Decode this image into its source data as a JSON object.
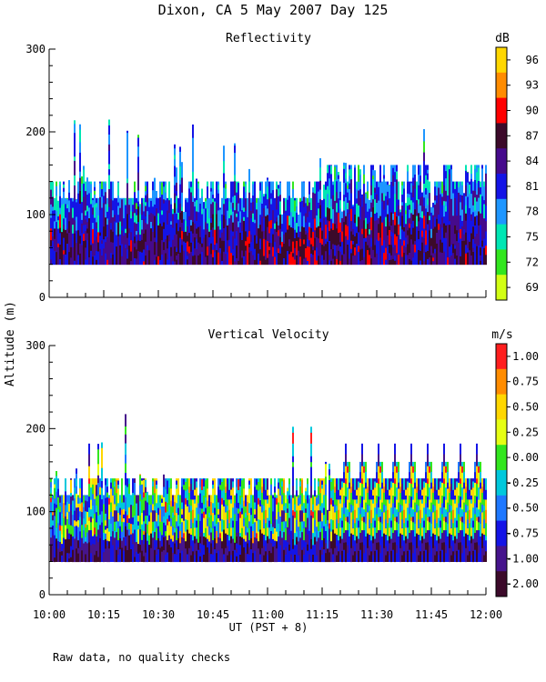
{
  "chart_data": {
    "type": "heatmap",
    "title": "Dixon, CA  5 May 2007  Day 125",
    "ylabel": "Altitude (m)",
    "xlabel": "UT  (PST + 8)",
    "x_ticks": [
      "10:00",
      "10:15",
      "10:30",
      "10:45",
      "11:00",
      "11:15",
      "11:30",
      "11:45",
      "12:00"
    ],
    "xlim_minutes": [
      600,
      720
    ],
    "ylim": [
      0,
      300
    ],
    "y_ticks": [
      0,
      100,
      200,
      300
    ],
    "panels": [
      {
        "id": "reflectivity",
        "title": "Reflectivity",
        "units": "dB",
        "colorbar_labels": [
          "96",
          "93",
          "90",
          "87",
          "84",
          "81",
          "78",
          "75",
          "72",
          "69"
        ],
        "colors_high_to_low": [
          "#ffd700",
          "#ff8c00",
          "#ff0000",
          "#3c0a2a",
          "#460a8c",
          "#1414e6",
          "#1e96ff",
          "#00e6b4",
          "#32e61e",
          "#d2ff14"
        ],
        "min_altitude": 40,
        "typical_top": 140,
        "max_top": 220
      },
      {
        "id": "vertical-velocity",
        "title": "Vertical Velocity",
        "units": "m/s",
        "colorbar_labels": [
          "1.00",
          "0.75",
          "0.50",
          "0.25",
          "0.00",
          "-0.25",
          "-0.50",
          "-0.75",
          "-1.00",
          "-2.00"
        ],
        "colors_high_to_low": [
          "#ff1e1e",
          "#ff8c00",
          "#ffd700",
          "#e6ff14",
          "#32e61e",
          "#00c8dc",
          "#1e78ff",
          "#1414e6",
          "#46148c",
          "#3c0a2a"
        ],
        "min_altitude": 40,
        "typical_top": 140,
        "max_top": 220
      }
    ]
  },
  "footnote": "Raw data, no quality checks"
}
